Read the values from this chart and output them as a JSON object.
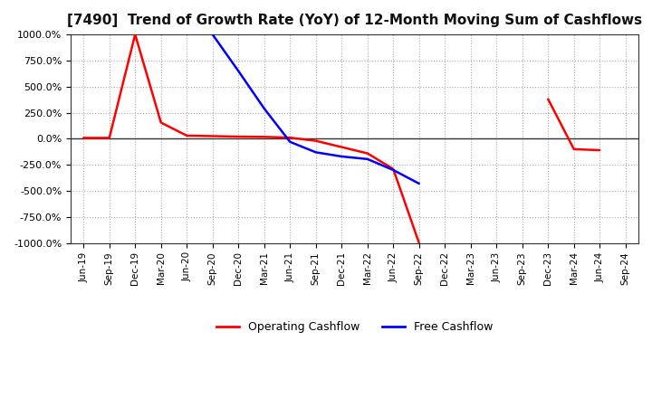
{
  "title": "[7490]  Trend of Growth Rate (YoY) of 12-Month Moving Sum of Cashflows",
  "ylim": [
    -1000,
    1000
  ],
  "yticks": [
    -1000,
    -750,
    -500,
    -250,
    0,
    250,
    500,
    750,
    1000
  ],
  "background_color": "#ffffff",
  "grid_color": "#aaaaaa",
  "zero_line_color": "#333333",
  "operating_color": "#ff0000",
  "free_color": "#0000ff",
  "legend_labels": [
    "Operating Cashflow",
    "Free Cashflow"
  ],
  "x_labels": [
    "Jun-19",
    "Sep-19",
    "Dec-19",
    "Mar-20",
    "Jun-20",
    "Sep-20",
    "Dec-20",
    "Mar-21",
    "Jun-21",
    "Sep-21",
    "Dec-21",
    "Mar-22",
    "Jun-22",
    "Sep-22",
    "Dec-22",
    "Mar-23",
    "Jun-23",
    "Sep-23",
    "Dec-23",
    "Mar-24",
    "Jun-24",
    "Sep-24"
  ],
  "operating": {
    "dates": [
      "Jun-19",
      "Sep-19",
      "Dec-19",
      "Mar-20",
      "Jun-20",
      "Sep-20",
      "Dec-20",
      "Mar-21",
      "Jun-21",
      "Sep-21",
      "Dec-21",
      "Mar-22",
      "Jun-22",
      "Sep-22",
      "Dec-23",
      "Mar-24",
      "Jun-24"
    ],
    "values": [
      8,
      8,
      1000,
      155,
      30,
      25,
      20,
      18,
      10,
      -20,
      -80,
      -140,
      -290,
      -1000,
      380,
      -100,
      -110
    ]
  },
  "free": {
    "dates": [
      "Sep-20",
      "Dec-20",
      "Mar-21",
      "Jun-21",
      "Sep-21",
      "Dec-21",
      "Mar-22",
      "Jun-22",
      "Sep-22"
    ],
    "values": [
      1000,
      650,
      290,
      -30,
      -130,
      -170,
      -195,
      -300,
      -430
    ]
  }
}
